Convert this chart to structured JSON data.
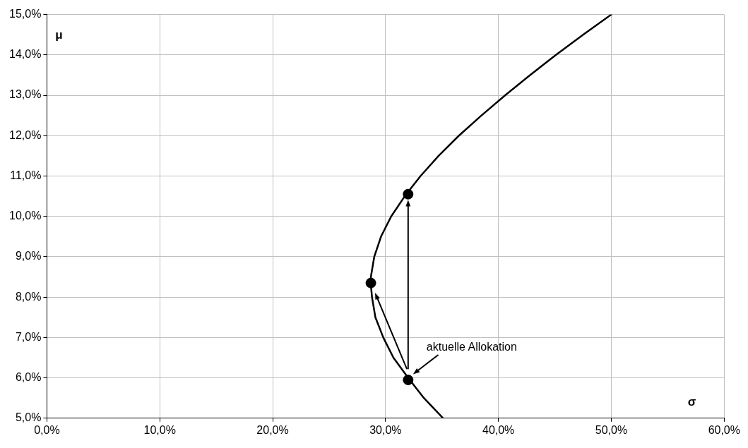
{
  "chart_data": {
    "type": "line",
    "xlabel": "σ",
    "ylabel": "μ",
    "series": [
      {
        "color": "#000000",
        "marker": "none",
        "x": [
          35.1,
          33.4,
          32.0,
          30.7,
          29.8,
          29.1,
          28.8,
          28.7,
          28.7,
          29.0,
          29.6,
          30.5,
          31.7,
          33.1,
          34.7,
          36.5,
          38.5,
          40.6,
          42.8,
          45.1,
          47.5,
          50.0
        ],
        "values": [
          5.0,
          5.5,
          6.0,
          6.5,
          7.0,
          7.5,
          8.0,
          8.3,
          8.5,
          9.0,
          9.5,
          10.0,
          10.5,
          11.0,
          11.5,
          12.0,
          12.5,
          13.0,
          13.5,
          14.0,
          14.5,
          15.0
        ]
      },
      {
        "type": "scatter",
        "color": "#000000",
        "marker": "circle",
        "x": [
          32.0,
          28.7,
          32.0
        ],
        "values": [
          10.55,
          8.35,
          5.95
        ]
      }
    ],
    "xlim": [
      0,
      60
    ],
    "ylim": [
      5,
      15
    ],
    "xticks": [
      {
        "value": 0,
        "label": "0,0%"
      },
      {
        "value": 10,
        "label": "10,0%"
      },
      {
        "value": 20,
        "label": "20,0%"
      },
      {
        "value": 30,
        "label": "30,0%"
      },
      {
        "value": 40,
        "label": "40,0%"
      },
      {
        "value": 50,
        "label": "50,0%"
      },
      {
        "value": 60,
        "label": "60,0%"
      }
    ],
    "yticks": [
      {
        "value": 5,
        "label": "5,0%"
      },
      {
        "value": 6,
        "label": "6,0%"
      },
      {
        "value": 7,
        "label": "7,0%"
      },
      {
        "value": 8,
        "label": "8,0%"
      },
      {
        "value": 9,
        "label": "9,0%"
      },
      {
        "value": 10,
        "label": "10,0%"
      },
      {
        "value": 11,
        "label": "11,0%"
      },
      {
        "value": 12,
        "label": "12,0%"
      },
      {
        "value": 13,
        "label": "13,0%"
      },
      {
        "value": 14,
        "label": "14,0%"
      },
      {
        "value": 15,
        "label": "15,0%"
      }
    ],
    "grid": true,
    "legend": false,
    "annotations": [
      {
        "text": "aktuelle Allokation",
        "x": 32.0,
        "y": 5.95
      }
    ]
  }
}
